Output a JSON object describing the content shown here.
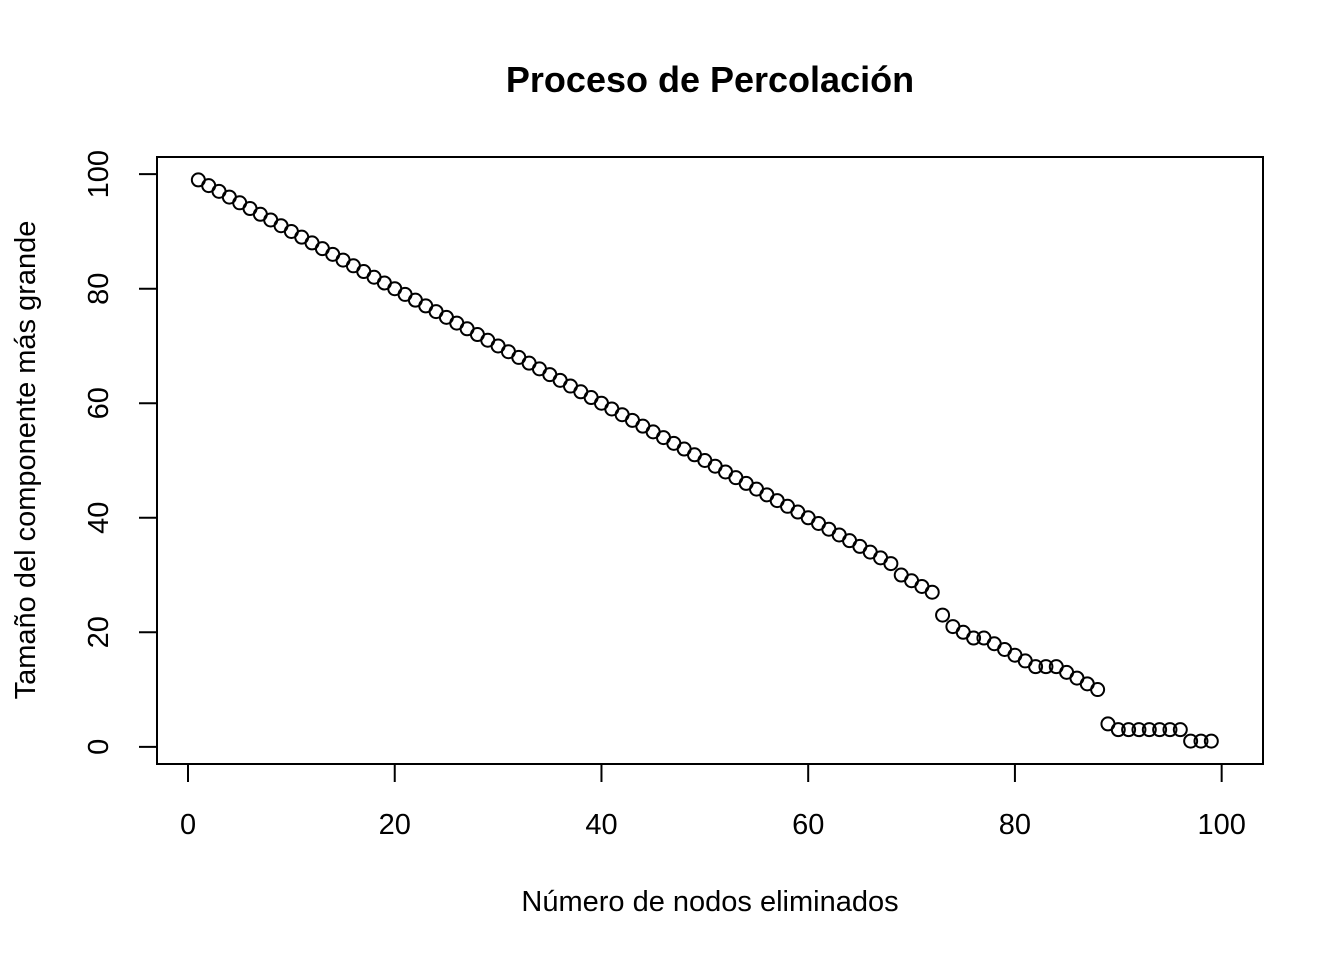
{
  "chart_data": {
    "type": "scatter",
    "title": "Proceso de Percolación",
    "xlabel": "Número de nodos eliminados",
    "ylabel": "Tamaño del componente más grande",
    "xlim": [
      -3,
      104
    ],
    "ylim": [
      -3,
      103
    ],
    "xticks": [
      0,
      20,
      40,
      60,
      80,
      100
    ],
    "yticks": [
      0,
      20,
      40,
      60,
      80,
      100
    ],
    "grid": false,
    "marker": "open-circle",
    "point_color": "#000000",
    "x": [
      1,
      2,
      3,
      4,
      5,
      6,
      7,
      8,
      9,
      10,
      11,
      12,
      13,
      14,
      15,
      16,
      17,
      18,
      19,
      20,
      21,
      22,
      23,
      24,
      25,
      26,
      27,
      28,
      29,
      30,
      31,
      32,
      33,
      34,
      35,
      36,
      37,
      38,
      39,
      40,
      41,
      42,
      43,
      44,
      45,
      46,
      47,
      48,
      49,
      50,
      51,
      52,
      53,
      54,
      55,
      56,
      57,
      58,
      59,
      60,
      61,
      62,
      63,
      64,
      65,
      66,
      67,
      68,
      69,
      70,
      71,
      72,
      73,
      74,
      75,
      76,
      77,
      78,
      79,
      80,
      81,
      82,
      83,
      84,
      85,
      86,
      87,
      88,
      89,
      90,
      91,
      92,
      93,
      94,
      95,
      96,
      97,
      98,
      99
    ],
    "y": [
      99,
      98,
      97,
      96,
      95,
      94,
      93,
      92,
      91,
      90,
      89,
      88,
      87,
      86,
      85,
      84,
      83,
      82,
      81,
      80,
      79,
      78,
      77,
      76,
      75,
      74,
      73,
      72,
      71,
      70,
      69,
      68,
      67,
      66,
      65,
      64,
      63,
      62,
      61,
      60,
      59,
      58,
      57,
      56,
      55,
      54,
      53,
      52,
      51,
      50,
      49,
      48,
      47,
      46,
      45,
      44,
      43,
      42,
      41,
      40,
      39,
      38,
      37,
      36,
      35,
      34,
      33,
      32,
      30,
      29,
      28,
      27,
      23,
      21,
      20,
      19,
      19,
      18,
      17,
      16,
      15,
      14,
      14,
      14,
      13,
      12,
      11,
      10,
      4,
      3,
      3,
      3,
      3,
      3,
      3,
      3,
      1,
      1,
      1
    ]
  }
}
